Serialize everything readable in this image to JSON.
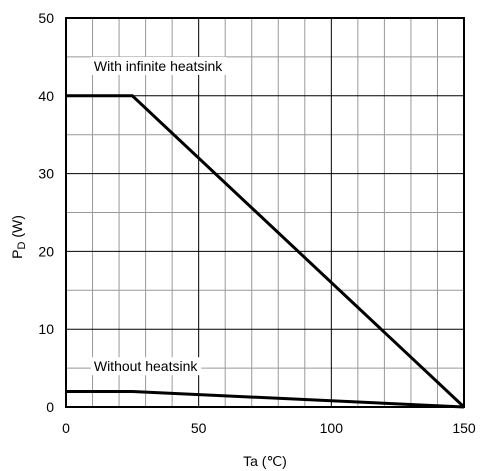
{
  "chart_data": {
    "type": "line",
    "title": "",
    "xlabel": "Ta (℃)",
    "ylabel_main": "P",
    "ylabel_sub": "D",
    "ylabel_unit": " (W)",
    "xlim": [
      0,
      150
    ],
    "ylim": [
      0,
      50
    ],
    "x_ticks": [
      "0",
      "50",
      "100",
      "150"
    ],
    "y_ticks": [
      "0",
      "10",
      "20",
      "30",
      "40",
      "50"
    ],
    "x_tick_values": [
      0,
      50,
      100,
      150
    ],
    "y_tick_values": [
      0,
      10,
      20,
      30,
      40,
      50
    ],
    "grid": true,
    "series": [
      {
        "name": "With infinite heatsink",
        "x": [
          0,
          25,
          150
        ],
        "y": [
          40,
          40,
          0
        ],
        "color": "#000000"
      },
      {
        "name": "Without heatsink",
        "x": [
          0,
          25,
          150
        ],
        "y": [
          2,
          2,
          0
        ],
        "color": "#000000"
      }
    ],
    "annotations": [
      {
        "text": "With infinite heatsink",
        "x": 10.5,
        "y": 43.2
      },
      {
        "text": "Without heatsink",
        "x": 10.5,
        "y": 4.6
      }
    ]
  }
}
